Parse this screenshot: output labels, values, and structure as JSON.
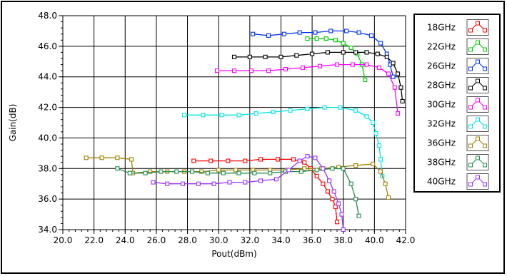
{
  "chart_data": {
    "type": "line",
    "title": "",
    "xlabel": "Pout(dBm)",
    "ylabel": "Gain(dB)",
    "xlim": [
      20.0,
      42.0
    ],
    "ylim": [
      34.0,
      48.0
    ],
    "x_ticks": [
      "20.0",
      "22.0",
      "24.0",
      "26.0",
      "28.0",
      "30.0",
      "32.0",
      "34.0",
      "36.0",
      "38.0",
      "40.0",
      "42.0"
    ],
    "y_ticks": [
      "34.0",
      "36.0",
      "38.0",
      "40.0",
      "42.0",
      "44.0",
      "46.0",
      "48.0"
    ],
    "grid": true,
    "legend_position": "right",
    "series": [
      {
        "name": "18GHz",
        "color": "#ff0000",
        "marker": "square",
        "x": [
          28.4,
          29.5,
          30.6,
          31.7,
          32.7,
          33.8,
          34.8,
          35.5,
          35.9,
          36.3,
          36.7,
          37.0,
          37.3,
          37.5,
          37.6
        ],
        "y": [
          38.5,
          38.5,
          38.5,
          38.5,
          38.6,
          38.6,
          38.6,
          38.4,
          38.0,
          37.5,
          37.0,
          36.5,
          36.0,
          35.5,
          34.5
        ]
      },
      {
        "name": "22GHz",
        "color": "#00cc00",
        "marker": "square",
        "x": [
          35.7,
          36.3,
          36.9,
          37.5,
          38.0,
          38.5,
          38.9,
          39.2,
          39.4
        ],
        "y": [
          46.5,
          46.5,
          46.5,
          46.4,
          46.2,
          45.9,
          45.5,
          44.8,
          43.8
        ]
      },
      {
        "name": "26GHz",
        "color": "#0033ff",
        "marker": "square",
        "x": [
          32.2,
          33.2,
          34.2,
          35.2,
          36.2,
          37.2,
          38.2,
          39.0,
          39.8,
          40.4,
          40.8,
          41.0,
          41.2
        ],
        "y": [
          46.8,
          46.7,
          46.8,
          46.9,
          46.9,
          47.0,
          47.0,
          46.9,
          46.7,
          46.2,
          45.5,
          44.8,
          44.0
        ]
      },
      {
        "name": "28GHz",
        "color": "#000000",
        "marker": "square",
        "x": [
          31.0,
          32.0,
          33.0,
          34.0,
          35.0,
          36.0,
          37.0,
          38.0,
          38.8,
          39.5,
          40.2,
          40.8,
          41.2,
          41.5,
          41.7,
          41.8
        ],
        "y": [
          45.3,
          45.3,
          45.3,
          45.3,
          45.4,
          45.5,
          45.6,
          45.6,
          45.6,
          45.6,
          45.5,
          45.3,
          44.9,
          44.2,
          43.3,
          42.4
        ]
      },
      {
        "name": "30GHz",
        "color": "#ff00ff",
        "marker": "square",
        "x": [
          29.9,
          31.0,
          32.1,
          33.2,
          34.3,
          35.4,
          36.5,
          37.6,
          38.6,
          39.5,
          40.3,
          40.9,
          41.3,
          41.5
        ],
        "y": [
          44.4,
          44.4,
          44.4,
          44.4,
          44.5,
          44.6,
          44.7,
          44.8,
          44.8,
          44.8,
          44.6,
          44.2,
          43.3,
          41.6
        ]
      },
      {
        "name": "32GHz",
        "color": "#00e5e5",
        "marker": "square",
        "x": [
          27.8,
          29.0,
          30.2,
          31.3,
          32.4,
          33.5,
          34.6,
          35.7,
          36.8,
          37.8,
          38.8,
          39.5,
          39.9,
          40.1,
          40.3,
          40.4,
          40.5
        ],
        "y": [
          41.5,
          41.5,
          41.5,
          41.5,
          41.6,
          41.7,
          41.8,
          41.9,
          42.0,
          42.0,
          41.8,
          41.4,
          41.0,
          40.3,
          39.5,
          38.6,
          37.5
        ]
      },
      {
        "name": "36GHz",
        "color": "#a08000",
        "marker": "square",
        "x": [
          21.5,
          22.5,
          23.5,
          24.4,
          24.5,
          25.6,
          26.7,
          27.8,
          28.9,
          30.0,
          31.1,
          32.2,
          33.3,
          34.4,
          35.5,
          36.6,
          37.7,
          38.8,
          39.9,
          40.4,
          40.7,
          40.9
        ],
        "y": [
          38.7,
          38.7,
          38.7,
          38.6,
          37.7,
          37.8,
          37.8,
          37.8,
          37.8,
          37.9,
          37.9,
          37.9,
          37.9,
          37.9,
          38.0,
          38.0,
          38.1,
          38.2,
          38.3,
          37.8,
          37.0,
          36.1
        ]
      },
      {
        "name": "38GHz",
        "color": "#228b50",
        "marker": "square",
        "x": [
          23.5,
          24.3,
          25.3,
          26.3,
          27.3,
          28.3,
          29.3,
          30.3,
          31.3,
          32.3,
          33.3,
          34.3,
          35.3,
          36.3,
          37.3,
          38.0,
          38.5,
          38.8,
          39.0
        ],
        "y": [
          38.0,
          37.7,
          37.7,
          37.8,
          37.8,
          37.8,
          37.7,
          37.7,
          37.7,
          37.7,
          37.7,
          37.8,
          37.8,
          37.9,
          38.0,
          38.0,
          37.0,
          36.0,
          34.9
        ]
      },
      {
        "name": "40GHz",
        "color": "#9933ff",
        "marker": "square",
        "x": [
          25.8,
          26.7,
          27.7,
          28.7,
          29.7,
          30.7,
          31.7,
          32.7,
          33.7,
          34.5,
          35.2,
          35.7,
          36.2,
          36.7,
          37.1,
          37.4,
          37.7,
          37.9,
          38.0
        ],
        "y": [
          37.1,
          37.0,
          37.0,
          37.0,
          37.0,
          37.1,
          37.1,
          37.2,
          37.3,
          37.9,
          38.5,
          38.8,
          38.7,
          38.0,
          37.2,
          36.5,
          35.7,
          35.0,
          34.0
        ]
      }
    ]
  }
}
